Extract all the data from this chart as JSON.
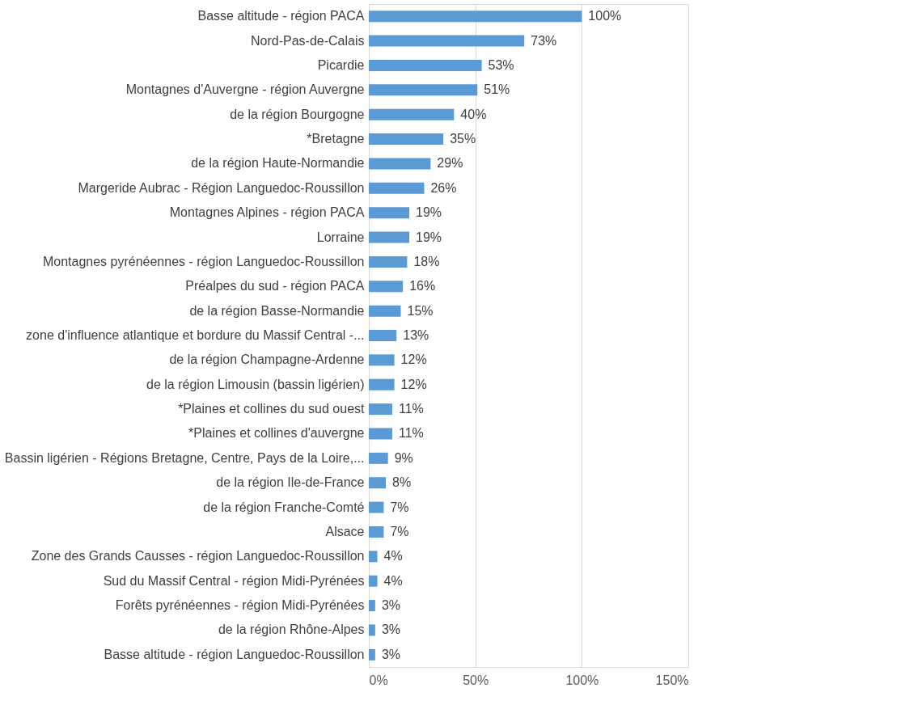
{
  "chart_data": {
    "type": "bar",
    "orientation": "horizontal",
    "categories": [
      "Basse altitude - région PACA",
      "Nord-Pas-de-Calais",
      "Picardie",
      "Montagnes d'Auvergne - région Auvergne",
      "de la région Bourgogne",
      "*Bretagne",
      "de la région Haute-Normandie",
      "Margeride Aubrac - Région Languedoc-Roussillon",
      "Montagnes Alpines - région PACA",
      "Lorraine",
      "Montagnes pyrénéennes - région Languedoc-Roussillon",
      "Préalpes du sud - région PACA",
      "de la région Basse-Normandie",
      "zone d'influence atlantique et bordure du Massif Central -...",
      "de la région Champagne-Ardenne",
      "de la région Limousin (bassin ligérien)",
      "*Plaines et collines du sud ouest",
      "*Plaines et collines d'auvergne",
      "Bassin ligérien - Régions Bretagne, Centre, Pays de la Loire,...",
      "de la région Ile-de-France",
      "de la région Franche-Comté",
      "Alsace",
      "Zone des Grands Causses - région Languedoc-Roussillon",
      "Sud du Massif Central - région Midi-Pyrénées",
      "Forêts pyrénéennes - région Midi-Pyrénées",
      "de la région Rhône-Alpes",
      "Basse altitude - région Languedoc-Roussillon"
    ],
    "values": [
      100,
      73,
      53,
      51,
      40,
      35,
      29,
      26,
      19,
      19,
      18,
      16,
      15,
      13,
      12,
      12,
      11,
      11,
      9,
      8,
      7,
      7,
      4,
      4,
      3,
      3,
      3
    ],
    "value_labels": [
      "100%",
      "73%",
      "53%",
      "51%",
      "40%",
      "35%",
      "29%",
      "26%",
      "19%",
      "19%",
      "18%",
      "16%",
      "15%",
      "13%",
      "12%",
      "12%",
      "11%",
      "11%",
      "9%",
      "8%",
      "7%",
      "7%",
      "4%",
      "4%",
      "3%",
      "3%",
      "3%"
    ],
    "color": "#5b9bd5",
    "xlim": [
      0,
      150
    ],
    "xticks": [
      {
        "value": 0,
        "label": "0%"
      },
      {
        "value": 50,
        "label": "50%"
      },
      {
        "value": 100,
        "label": "100%"
      },
      {
        "value": 150,
        "label": "150%"
      }
    ],
    "grid": "x"
  }
}
